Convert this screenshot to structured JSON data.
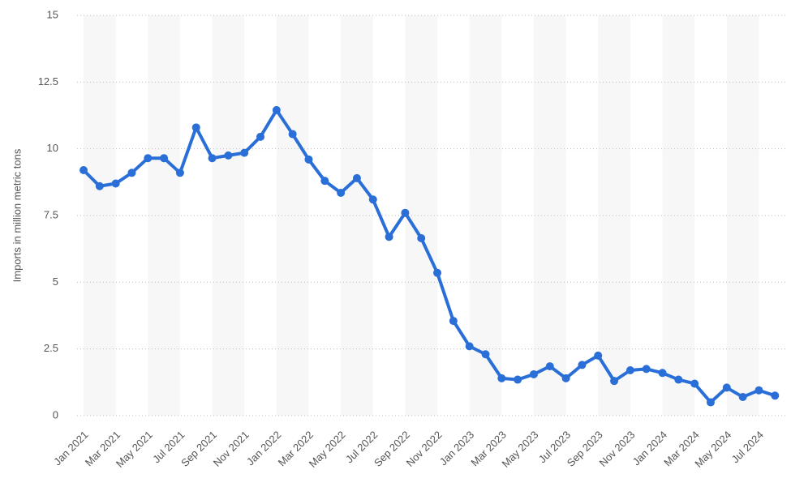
{
  "chart_data": {
    "type": "line",
    "y_axis_label": "Imports in million metric tons",
    "categories": [
      "Jan 2021",
      null,
      "Mar 2021",
      null,
      "May 2021",
      null,
      "Jul 2021",
      null,
      "Sep 2021",
      null,
      "Nov 2021",
      null,
      "Jan 2022",
      null,
      "Mar 2022",
      null,
      "May 2022",
      null,
      "Jul 2022",
      null,
      "Sep 2022",
      null,
      "Nov 2022",
      null,
      "Jan 2023",
      null,
      "Mar 2023",
      null,
      "May 2023",
      null,
      "Jul 2023",
      null,
      "Sep 2023",
      null,
      "Nov 2023",
      null,
      "Jan 2024",
      null,
      "Mar 2024",
      null,
      "May 2024",
      null,
      "Jul 2024",
      null
    ],
    "series": [
      {
        "name": "Imports",
        "color": "#2a6fd8",
        "values": [
          9.2,
          8.6,
          8.7,
          9.1,
          9.65,
          9.65,
          9.1,
          10.8,
          9.65,
          9.75,
          9.85,
          10.45,
          11.45,
          10.55,
          9.6,
          8.8,
          8.35,
          8.9,
          8.1,
          6.7,
          7.6,
          6.65,
          5.35,
          3.55,
          2.6,
          2.3,
          1.4,
          1.35,
          1.55,
          1.85,
          1.4,
          1.9,
          2.25,
          1.3,
          1.7,
          1.75,
          1.6,
          1.35,
          1.2,
          0.5,
          1.05,
          0.7,
          0.95,
          0.75
        ]
      }
    ],
    "ylim": [
      0,
      15
    ],
    "yticks": [
      0,
      2.5,
      5,
      7.5,
      10,
      12.5,
      15
    ],
    "grid": true
  }
}
